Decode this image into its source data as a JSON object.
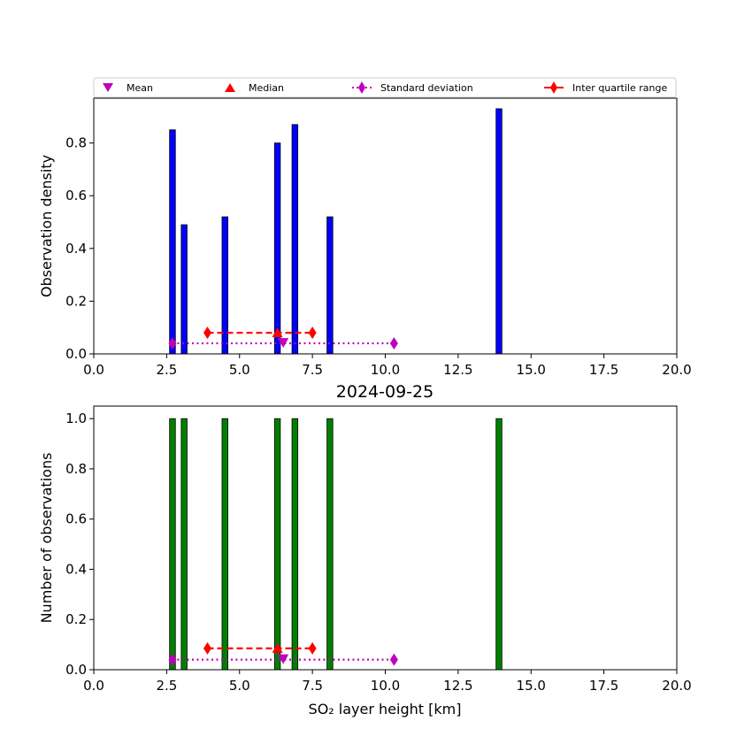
{
  "legend": {
    "mean": "Mean",
    "median": "Median",
    "std": "Standard deviation",
    "iqr": "Inter quartile range"
  },
  "colors": {
    "density_bars": "#0000ff",
    "count_bars": "#008000",
    "mean": "#bf00bf",
    "median": "#ff0000",
    "std": "#bf00bf",
    "iqr": "#ff0000"
  },
  "chart_data": [
    {
      "type": "bar",
      "title": "",
      "xlabel": "",
      "ylabel": "Observation density",
      "xlim": [
        0,
        20
      ],
      "ylim": [
        0,
        0.97
      ],
      "xticks": [
        "0.0",
        "2.5",
        "5.0",
        "7.5",
        "10.0",
        "12.5",
        "15.0",
        "17.5",
        "20.0"
      ],
      "yticks": [
        "0.0",
        "0.2",
        "0.4",
        "0.6",
        "0.8"
      ],
      "bin_width": 0.2,
      "bars": [
        {
          "x": 2.7,
          "value": 0.85
        },
        {
          "x": 3.1,
          "value": 0.49
        },
        {
          "x": 4.5,
          "value": 0.52
        },
        {
          "x": 6.3,
          "value": 0.8
        },
        {
          "x": 6.9,
          "value": 0.87
        },
        {
          "x": 8.1,
          "value": 0.52
        },
        {
          "x": 13.9,
          "value": 0.93
        }
      ],
      "stats": {
        "mean": 6.5,
        "median": 6.3,
        "std_range": [
          2.7,
          10.3
        ],
        "iqr_range": [
          3.9,
          7.5
        ],
        "std_y": 0.04,
        "iqr_y": 0.08
      }
    },
    {
      "type": "bar",
      "title": "2024-09-25",
      "xlabel": "SO₂ layer height [km]",
      "ylabel": "Number of observations",
      "xlim": [
        0,
        20
      ],
      "ylim": [
        0,
        1.05
      ],
      "xticks": [
        "0.0",
        "2.5",
        "5.0",
        "7.5",
        "10.0",
        "12.5",
        "15.0",
        "17.5",
        "20.0"
      ],
      "yticks": [
        "0.0",
        "0.2",
        "0.4",
        "0.6",
        "0.8",
        "1.0"
      ],
      "bin_width": 0.2,
      "bars": [
        {
          "x": 2.7,
          "value": 1
        },
        {
          "x": 3.1,
          "value": 1
        },
        {
          "x": 4.5,
          "value": 1
        },
        {
          "x": 6.3,
          "value": 1
        },
        {
          "x": 6.9,
          "value": 1
        },
        {
          "x": 8.1,
          "value": 1
        },
        {
          "x": 13.9,
          "value": 1
        }
      ],
      "stats": {
        "mean": 6.5,
        "median": 6.3,
        "std_range": [
          2.7,
          10.3
        ],
        "iqr_range": [
          3.9,
          7.5
        ],
        "std_y": 0.04,
        "iqr_y": 0.085
      }
    }
  ]
}
